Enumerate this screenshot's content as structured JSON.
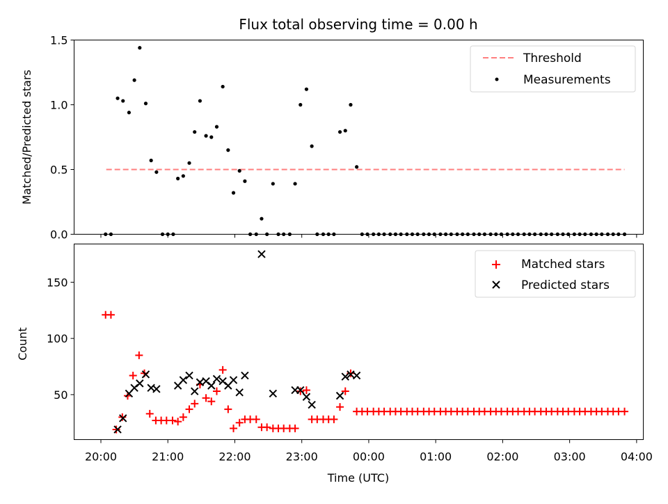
{
  "chart_data": [
    {
      "type": "scatter",
      "title": "Flux total observing time = 0.00 h",
      "xlabel": "",
      "ylabel": "Matched/Predicted stars",
      "xlim_hours": [
        19.6,
        28.1
      ],
      "ylim": [
        0.0,
        1.5
      ],
      "yticks": [
        "0.0",
        "0.5",
        "1.0",
        "1.5"
      ],
      "ytick_values": [
        0.0,
        0.5,
        1.0,
        1.5
      ],
      "grid": false,
      "legend_position": "top-right",
      "colors": {
        "threshold": "#ff7f7f",
        "measurements": "#000000"
      },
      "series": [
        {
          "name": "Threshold",
          "kind": "dashed-line",
          "x_hours": [
            20.08,
            27.82
          ],
          "values": [
            0.5,
            0.5
          ]
        },
        {
          "name": "Measurements",
          "kind": "points",
          "x_hours": [
            20.07,
            20.15,
            20.25,
            20.33,
            20.42,
            20.5,
            20.58,
            20.67,
            20.75,
            20.83,
            20.92,
            21.0,
            21.08,
            21.15,
            21.23,
            21.32,
            21.4,
            21.48,
            21.57,
            21.65,
            21.73,
            21.82,
            21.9,
            21.98,
            22.07,
            22.15,
            22.23,
            22.32,
            22.4,
            22.48,
            22.57,
            22.65,
            22.73,
            22.82,
            22.9,
            22.98,
            23.07,
            23.15,
            23.23,
            23.32,
            23.4,
            23.48,
            23.57,
            23.65,
            23.73,
            23.82,
            23.9,
            23.98,
            24.07,
            24.15,
            24.23,
            24.32,
            24.4,
            24.48,
            24.57,
            24.65,
            24.73,
            24.82,
            24.9,
            24.98,
            25.07,
            25.15,
            25.23,
            25.32,
            25.4,
            25.48,
            25.57,
            25.65,
            25.73,
            25.82,
            25.9,
            25.98,
            26.07,
            26.15,
            26.23,
            26.32,
            26.4,
            26.48,
            26.57,
            26.65,
            26.73,
            26.82,
            26.9,
            26.98,
            27.07,
            27.15,
            27.23,
            27.32,
            27.4,
            27.48,
            27.57,
            27.65,
            27.73,
            27.82
          ],
          "values": [
            0.0,
            0.0,
            1.05,
            1.03,
            0.94,
            1.19,
            1.44,
            1.01,
            0.57,
            0.48,
            0.0,
            0.0,
            0.0,
            0.43,
            0.45,
            0.55,
            0.79,
            1.03,
            0.76,
            0.75,
            0.83,
            1.14,
            0.65,
            0.32,
            0.49,
            0.41,
            0.0,
            0.0,
            0.12,
            0.0,
            0.39,
            0.0,
            0.0,
            0.0,
            0.39,
            1.0,
            1.12,
            0.68,
            0.0,
            0.0,
            0.0,
            0.0,
            0.79,
            0.8,
            1.0,
            0.52,
            0.0,
            0.0,
            0.0,
            0.0,
            0.0,
            0.0,
            0.0,
            0.0,
            0.0,
            0.0,
            0.0,
            0.0,
            0.0,
            0.0,
            0.0,
            0.0,
            0.0,
            0.0,
            0.0,
            0.0,
            0.0,
            0.0,
            0.0,
            0.0,
            0.0,
            0.0,
            0.0,
            0.0,
            0.0,
            0.0,
            0.0,
            0.0,
            0.0,
            0.0,
            0.0,
            0.0,
            0.0,
            0.0,
            0.0,
            0.0,
            0.0,
            0.0,
            0.0,
            0.0,
            0.0,
            0.0,
            0.0,
            0.0
          ]
        }
      ]
    },
    {
      "type": "scatter",
      "title": "",
      "xlabel": "Time (UTC)",
      "ylabel": "Count",
      "xlim_hours": [
        19.6,
        28.1
      ],
      "ylim": [
        10,
        184
      ],
      "yticks": [
        "50",
        "100",
        "150"
      ],
      "ytick_values": [
        50,
        100,
        150
      ],
      "x_tick_values_hours": [
        20,
        21,
        22,
        23,
        24,
        25,
        26,
        27,
        28
      ],
      "x_tick_labels": [
        "20:00",
        "21:00",
        "22:00",
        "23:00",
        "00:00",
        "01:00",
        "02:00",
        "03:00",
        "04:00"
      ],
      "grid": false,
      "legend_position": "top-right",
      "colors": {
        "matched": "#ff0000",
        "predicted": "#000000"
      },
      "series": [
        {
          "name": "Matched stars",
          "kind": "plus",
          "x_hours": [
            20.07,
            20.15,
            20.23,
            20.32,
            20.4,
            20.48,
            20.57,
            20.65,
            20.73,
            20.82,
            20.9,
            20.98,
            21.07,
            21.15,
            21.23,
            21.32,
            21.4,
            21.48,
            21.57,
            21.65,
            21.73,
            21.82,
            21.9,
            21.98,
            22.07,
            22.15,
            22.23,
            22.32,
            22.4,
            22.48,
            22.57,
            22.65,
            22.73,
            22.82,
            22.9,
            22.98,
            23.07,
            23.15,
            23.23,
            23.32,
            23.4,
            23.48,
            23.57,
            23.65,
            23.73,
            23.82,
            23.9,
            23.98,
            24.07,
            24.15,
            24.23,
            24.32,
            24.4,
            24.48,
            24.57,
            24.65,
            24.73,
            24.82,
            24.9,
            24.98,
            25.07,
            25.15,
            25.23,
            25.32,
            25.4,
            25.48,
            25.57,
            25.65,
            25.73,
            25.82,
            25.9,
            25.98,
            26.07,
            26.15,
            26.23,
            26.32,
            26.4,
            26.48,
            26.57,
            26.65,
            26.73,
            26.82,
            26.9,
            26.98,
            27.07,
            27.15,
            27.23,
            27.32,
            27.4,
            27.48,
            27.57,
            27.65,
            27.73,
            27.82
          ],
          "values": [
            121,
            121,
            19,
            30,
            49,
            67,
            85,
            69,
            33,
            27,
            27,
            27,
            27,
            26,
            30,
            37,
            42,
            59,
            47,
            44,
            53,
            72,
            37,
            20,
            25,
            28,
            28,
            28,
            21,
            21,
            20,
            20,
            20,
            20,
            20,
            53,
            54,
            28,
            28,
            28,
            28,
            28,
            39,
            53,
            69,
            35,
            35,
            35,
            35,
            35,
            35,
            35,
            35,
            35,
            35,
            35,
            35,
            35,
            35,
            35,
            35,
            35,
            35,
            35,
            35,
            35,
            35,
            35,
            35,
            35,
            35,
            35,
            35,
            35,
            35,
            35,
            35,
            35,
            35,
            35,
            35,
            35,
            35,
            35,
            35,
            35,
            35,
            35,
            35,
            35,
            35,
            35,
            35,
            35
          ]
        },
        {
          "name": "Predicted stars",
          "kind": "cross",
          "x_hours": [
            20.25,
            20.33,
            20.42,
            20.5,
            20.58,
            20.67,
            20.75,
            20.83,
            21.15,
            21.23,
            21.32,
            21.4,
            21.48,
            21.57,
            21.65,
            21.73,
            21.82,
            21.9,
            21.98,
            22.07,
            22.15,
            22.4,
            22.57,
            22.9,
            22.98,
            23.07,
            23.15,
            23.57,
            23.65,
            23.73,
            23.82
          ],
          "values": [
            19,
            29,
            51,
            56,
            60,
            68,
            56,
            55,
            58,
            63,
            67,
            53,
            61,
            62,
            58,
            64,
            62,
            58,
            63,
            52,
            67,
            175,
            51,
            54,
            54,
            48,
            41,
            49,
            66,
            68,
            67
          ]
        }
      ]
    }
  ]
}
